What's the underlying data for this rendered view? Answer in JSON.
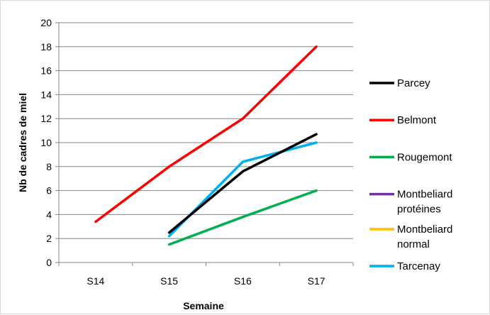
{
  "chart_data": {
    "type": "line",
    "title": "",
    "xlabel": "Semaine",
    "ylabel": "Nb de cadres de miel",
    "categories": [
      "S14",
      "S15",
      "S16",
      "S17"
    ],
    "ylim": [
      0,
      20
    ],
    "yticks": [
      "0",
      "2",
      "4",
      "6",
      "8",
      "10",
      "12",
      "14",
      "16",
      "18",
      "20"
    ],
    "grid": true,
    "legend_position": "right",
    "series": [
      {
        "name": "Parcey",
        "color": "#000000",
        "values": [
          null,
          2.5,
          7.6,
          10.7
        ]
      },
      {
        "name": "Belmont",
        "color": "#ff0000",
        "values": [
          3.4,
          8.0,
          12.0,
          18.0
        ]
      },
      {
        "name": "Rougemont",
        "color": "#00b050",
        "values": [
          null,
          1.5,
          3.8,
          6.0
        ]
      },
      {
        "name": "Montbeliard protéines",
        "color": "#7030a0",
        "values": [
          null,
          null,
          null,
          null
        ]
      },
      {
        "name": "Montbeliard normal",
        "color": "#ffc000",
        "values": [
          null,
          null,
          null,
          null
        ]
      },
      {
        "name": "Tarcenay",
        "color": "#00b0f0",
        "values": [
          null,
          2.2,
          8.4,
          10.0
        ]
      }
    ]
  }
}
